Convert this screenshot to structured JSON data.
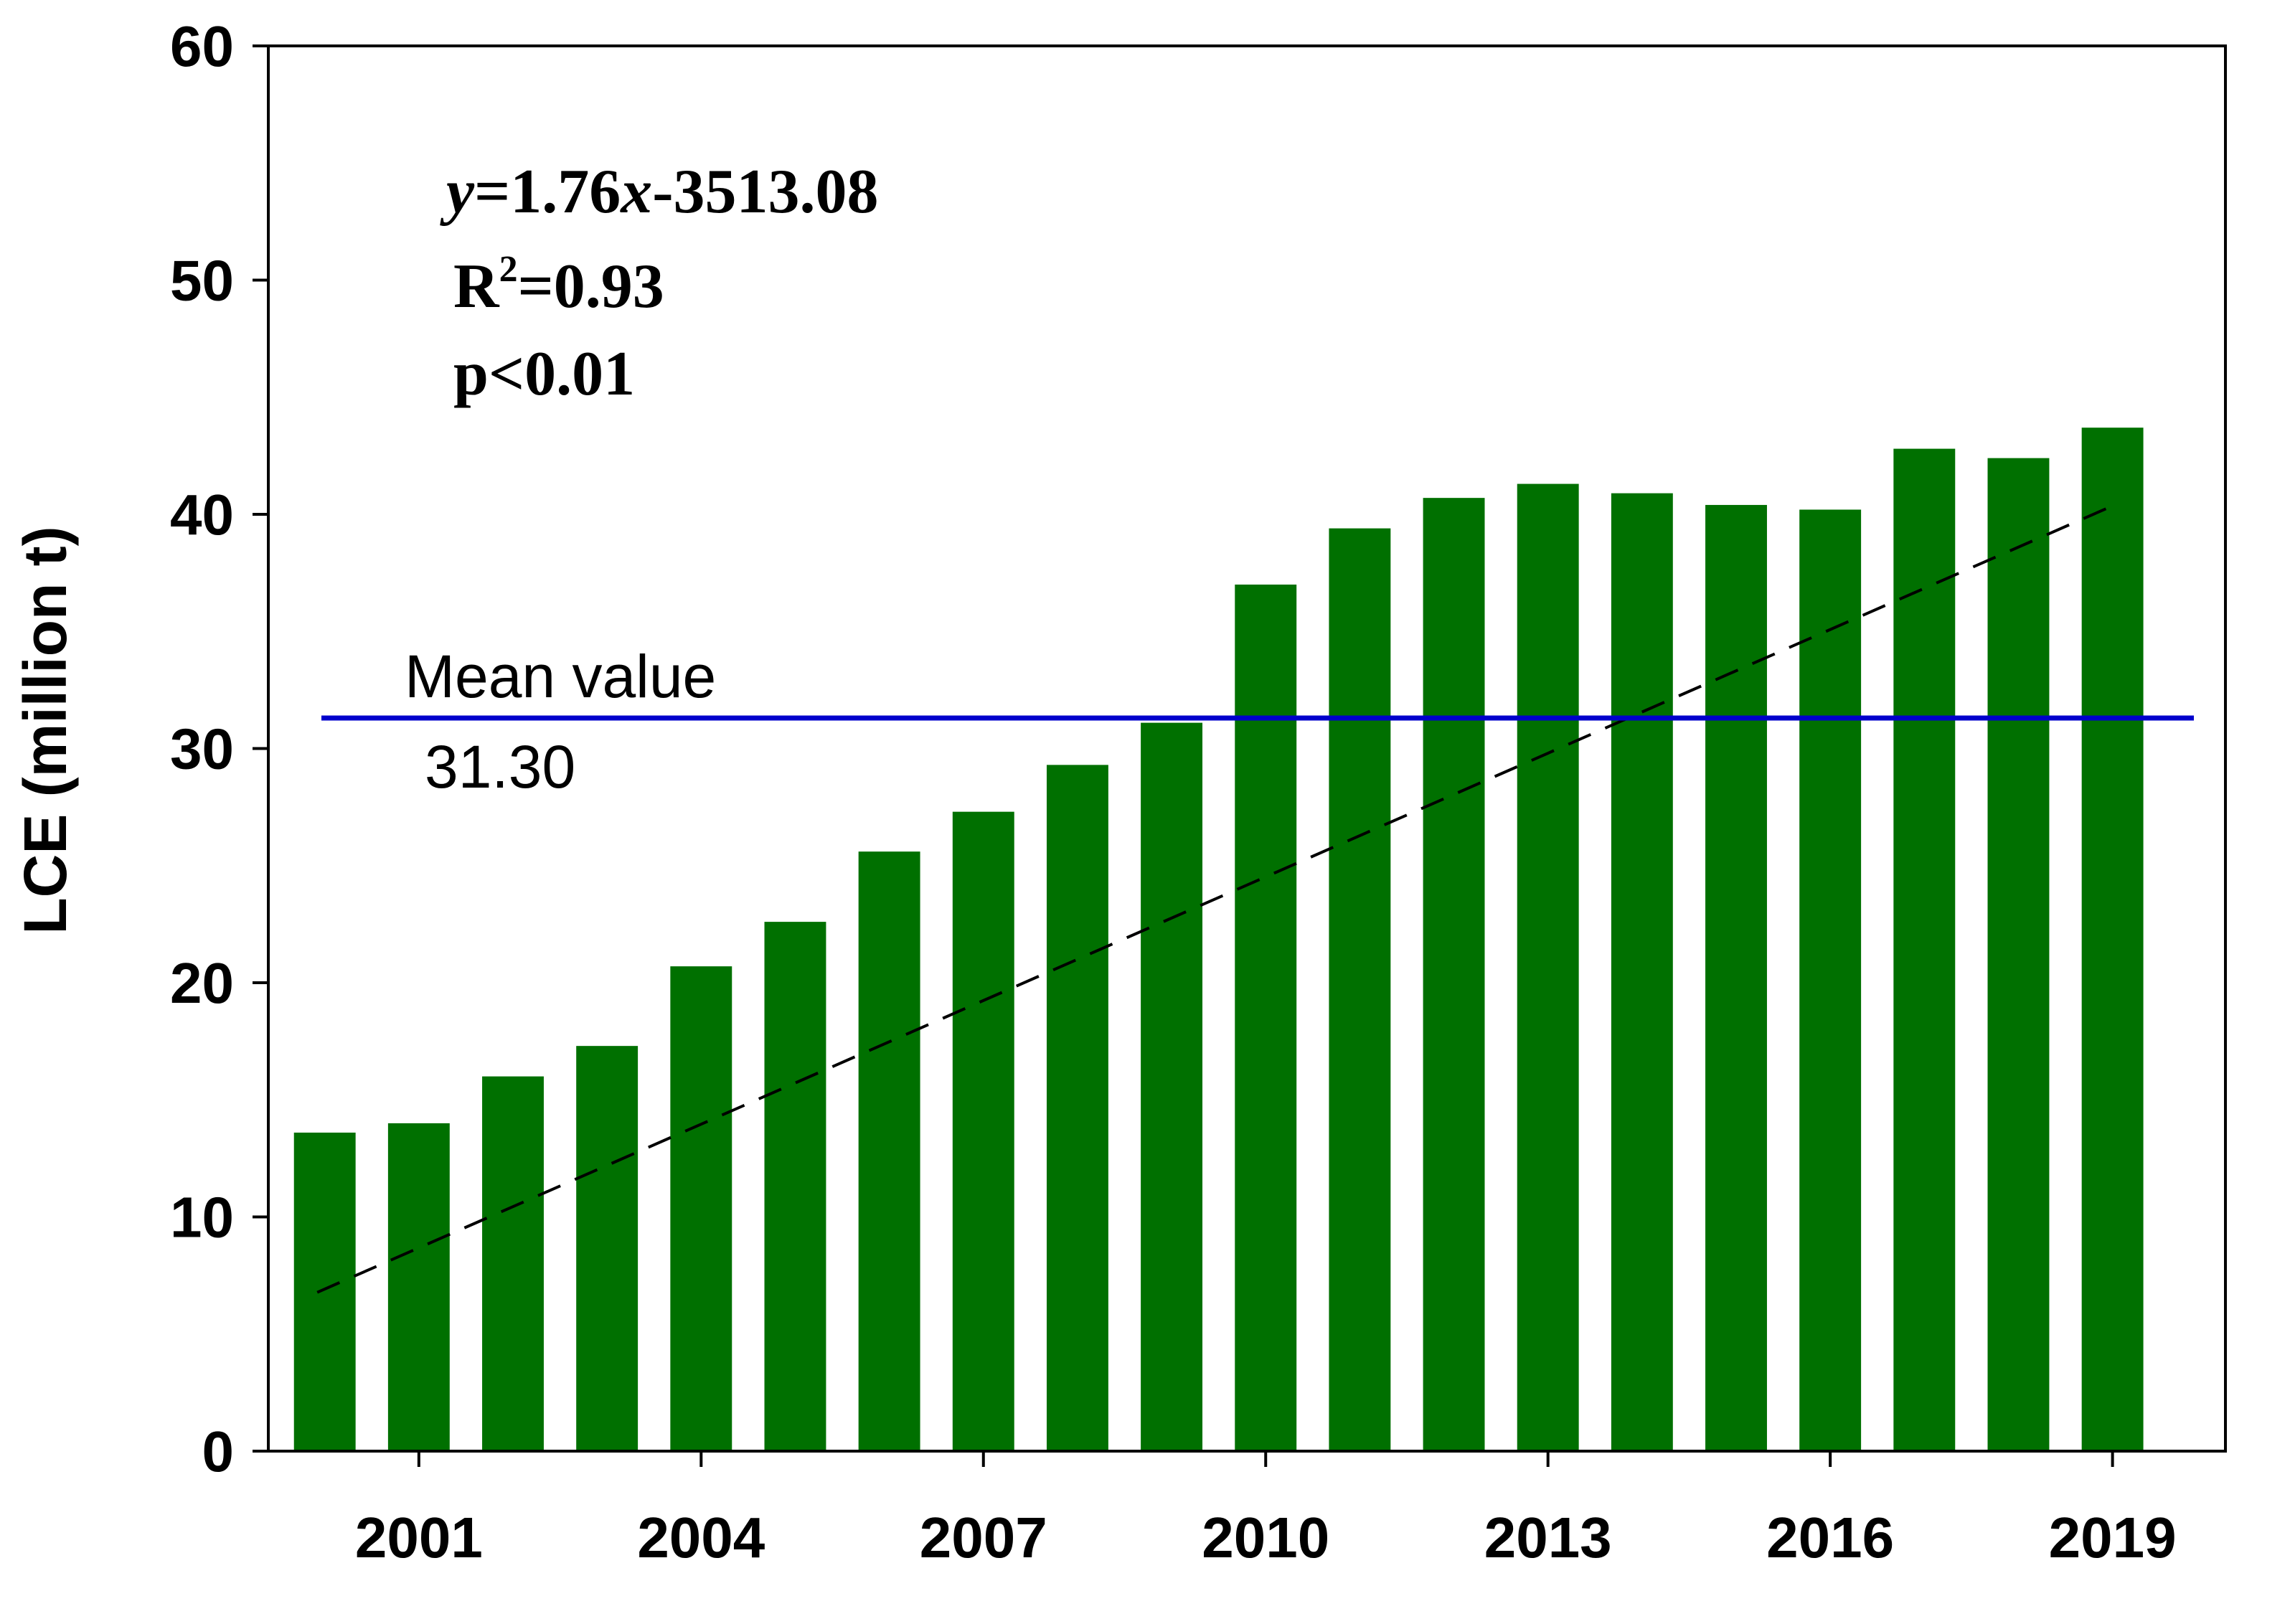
{
  "chart_data": {
    "type": "bar",
    "title": "",
    "xlabel": "",
    "ylabel": "LCE (million t)",
    "x": [
      2000,
      2001,
      2002,
      2003,
      2004,
      2005,
      2006,
      2007,
      2008,
      2009,
      2010,
      2011,
      2012,
      2013,
      2014,
      2015,
      2016,
      2017,
      2018,
      2019
    ],
    "values": [
      13.6,
      14.0,
      16.0,
      17.3,
      20.7,
      22.6,
      25.6,
      27.3,
      29.3,
      31.1,
      37.0,
      39.4,
      40.7,
      41.3,
      40.9,
      40.4,
      40.2,
      42.8,
      42.4,
      43.7
    ],
    "xticks": [
      "2001",
      "2004",
      "2007",
      "2010",
      "2013",
      "2016",
      "2019"
    ],
    "yticks": [
      "0",
      "10",
      "20",
      "30",
      "40",
      "50",
      "60"
    ],
    "ylim": [
      0,
      60
    ],
    "xlim": [
      1999.4,
      2020.2
    ],
    "grid": false,
    "bar_color": "#007000",
    "trend": {
      "slope": 1.76,
      "intercept": -3513.08,
      "x_start": 2000,
      "x_end": 2019,
      "style": "dashed",
      "color": "#000000"
    },
    "mean": {
      "value": 31.3,
      "label": "Mean value",
      "value_label": "31.30",
      "color": "#0000cc"
    },
    "annotation": {
      "equation_y": "y",
      "equation_rest": "=1.76",
      "equation_x": "x",
      "equation_tail": "-3513.08",
      "r2_base": "R",
      "r2_sup": "2",
      "r2_value": "=0.93",
      "p_value": "p<0.01"
    }
  }
}
